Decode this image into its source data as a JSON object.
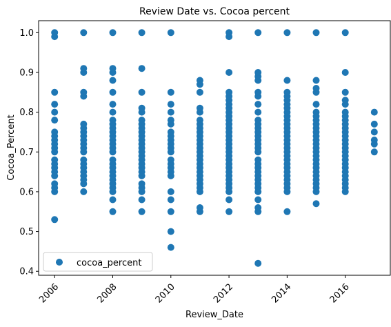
{
  "chart_data": {
    "type": "scatter",
    "title": "Review Date vs. Cocoa percent",
    "xlabel": "Review_Date",
    "ylabel": "Cocoa_Percent",
    "xlim": [
      2005.45,
      2017.55
    ],
    "ylim": [
      0.39,
      1.03
    ],
    "xticks": [
      "2006",
      "2008",
      "2010",
      "2012",
      "2014",
      "2016"
    ],
    "yticks": [
      "0.4",
      "0.5",
      "0.6",
      "0.7",
      "0.8",
      "0.9",
      "1.0"
    ],
    "xtick_values": [
      2006,
      2008,
      2010,
      2012,
      2014,
      2016
    ],
    "ytick_values": [
      0.4,
      0.5,
      0.6,
      0.7,
      0.8,
      0.9,
      1.0
    ],
    "xtick_rotation": 45,
    "grid": false,
    "legend": {
      "position": "lower-left"
    },
    "series": [
      {
        "name": "cocoa_percent",
        "color": "#1f77b4",
        "marker": "circle",
        "points": [
          {
            "x": 2006,
            "y": [
              0.53,
              0.6,
              0.61,
              0.62,
              0.64,
              0.65,
              0.66,
              0.67,
              0.68,
              0.7,
              0.71,
              0.72,
              0.73,
              0.74,
              0.75,
              0.78,
              0.8,
              0.82,
              0.85,
              0.99,
              1.0
            ]
          },
          {
            "x": 2007,
            "y": [
              0.6,
              0.62,
              0.63,
              0.64,
              0.65,
              0.66,
              0.67,
              0.68,
              0.7,
              0.71,
              0.72,
              0.73,
              0.74,
              0.75,
              0.76,
              0.77,
              0.84,
              0.85,
              0.9,
              0.91,
              1.0
            ]
          },
          {
            "x": 2008,
            "y": [
              0.55,
              0.58,
              0.6,
              0.61,
              0.62,
              0.63,
              0.64,
              0.65,
              0.66,
              0.67,
              0.68,
              0.7,
              0.71,
              0.72,
              0.73,
              0.74,
              0.75,
              0.76,
              0.77,
              0.78,
              0.8,
              0.82,
              0.85,
              0.88,
              0.9,
              0.91,
              1.0
            ]
          },
          {
            "x": 2009,
            "y": [
              0.55,
              0.58,
              0.6,
              0.61,
              0.62,
              0.64,
              0.65,
              0.66,
              0.67,
              0.68,
              0.69,
              0.7,
              0.71,
              0.72,
              0.73,
              0.74,
              0.75,
              0.76,
              0.77,
              0.78,
              0.8,
              0.81,
              0.85,
              0.91,
              1.0
            ]
          },
          {
            "x": 2010,
            "y": [
              0.46,
              0.5,
              0.55,
              0.58,
              0.6,
              0.64,
              0.65,
              0.66,
              0.67,
              0.68,
              0.7,
              0.71,
              0.72,
              0.73,
              0.74,
              0.75,
              0.77,
              0.78,
              0.8,
              0.82,
              0.85,
              1.0
            ]
          },
          {
            "x": 2011,
            "y": [
              0.55,
              0.56,
              0.6,
              0.61,
              0.62,
              0.63,
              0.64,
              0.65,
              0.66,
              0.67,
              0.68,
              0.69,
              0.7,
              0.71,
              0.72,
              0.73,
              0.74,
              0.75,
              0.76,
              0.77,
              0.78,
              0.8,
              0.81,
              0.85,
              0.87,
              0.88
            ]
          },
          {
            "x": 2012,
            "y": [
              0.55,
              0.58,
              0.6,
              0.61,
              0.62,
              0.63,
              0.64,
              0.65,
              0.66,
              0.67,
              0.68,
              0.69,
              0.7,
              0.71,
              0.72,
              0.73,
              0.74,
              0.75,
              0.76,
              0.77,
              0.78,
              0.79,
              0.8,
              0.81,
              0.82,
              0.83,
              0.84,
              0.85,
              0.9,
              0.99,
              1.0
            ]
          },
          {
            "x": 2013,
            "y": [
              0.42,
              0.55,
              0.56,
              0.58,
              0.6,
              0.61,
              0.62,
              0.63,
              0.64,
              0.65,
              0.66,
              0.67,
              0.68,
              0.7,
              0.71,
              0.72,
              0.73,
              0.74,
              0.75,
              0.76,
              0.77,
              0.78,
              0.8,
              0.82,
              0.84,
              0.85,
              0.88,
              0.89,
              0.9,
              1.0
            ]
          },
          {
            "x": 2014,
            "y": [
              0.55,
              0.6,
              0.61,
              0.62,
              0.63,
              0.64,
              0.65,
              0.66,
              0.67,
              0.68,
              0.69,
              0.7,
              0.71,
              0.72,
              0.73,
              0.74,
              0.75,
              0.76,
              0.77,
              0.78,
              0.79,
              0.8,
              0.81,
              0.82,
              0.83,
              0.84,
              0.85,
              0.88,
              1.0
            ]
          },
          {
            "x": 2015,
            "y": [
              0.57,
              0.6,
              0.61,
              0.62,
              0.63,
              0.64,
              0.65,
              0.66,
              0.67,
              0.68,
              0.69,
              0.7,
              0.71,
              0.72,
              0.73,
              0.74,
              0.75,
              0.76,
              0.77,
              0.78,
              0.79,
              0.8,
              0.82,
              0.85,
              0.86,
              0.88,
              1.0
            ]
          },
          {
            "x": 2016,
            "y": [
              0.6,
              0.61,
              0.62,
              0.63,
              0.64,
              0.65,
              0.66,
              0.67,
              0.68,
              0.69,
              0.7,
              0.71,
              0.72,
              0.73,
              0.74,
              0.75,
              0.76,
              0.77,
              0.78,
              0.79,
              0.8,
              0.82,
              0.83,
              0.85,
              0.9,
              1.0
            ]
          },
          {
            "x": 2017,
            "y": [
              0.7,
              0.72,
              0.73,
              0.75,
              0.77,
              0.8
            ]
          }
        ]
      }
    ]
  }
}
